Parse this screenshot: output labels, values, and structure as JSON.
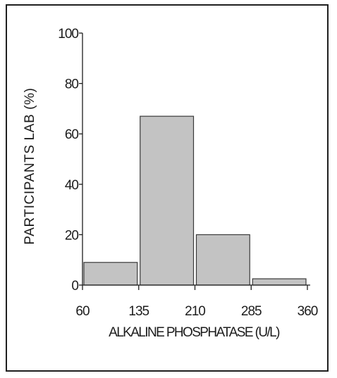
{
  "chart_data": {
    "type": "bar",
    "xlabel": "ALKALINE PHOSPHATASE (U/L)",
    "ylabel": "PARTICIPANTS LAB (%)",
    "x_ticks": [
      "60",
      "135",
      "210",
      "285",
      "360"
    ],
    "y_ticks": [
      "0",
      "20",
      "40",
      "60",
      "80",
      "100"
    ],
    "xlim": [
      60,
      360
    ],
    "ylim": [
      0,
      100
    ],
    "bins": [
      {
        "from": 60,
        "to": 135,
        "value": 9
      },
      {
        "from": 135,
        "to": 210,
        "value": 67
      },
      {
        "from": 210,
        "to": 285,
        "value": 20
      },
      {
        "from": 285,
        "to": 360,
        "value": 2.5
      }
    ],
    "colors": {
      "bar_fill": "#c3c3c3",
      "bar_stroke": "#3a3a3a",
      "text": "#1c1c1c"
    }
  }
}
